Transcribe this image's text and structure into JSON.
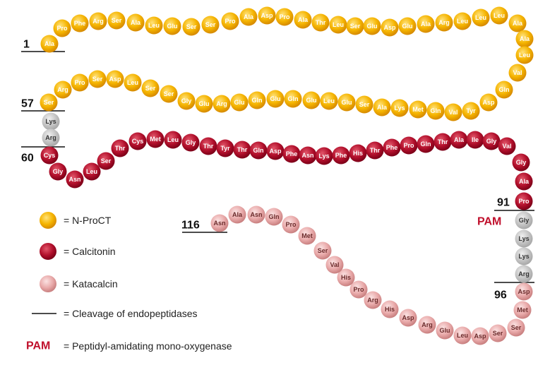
{
  "chains": [
    {
      "residues": [
        "Ala",
        "Pro",
        "Phe",
        "Arg",
        "Ser",
        "Ala",
        "Leu",
        "Glu",
        "Ser",
        "Ser",
        "Pro",
        "Ala",
        "Asp",
        "Pro",
        "Ala",
        "Thr",
        "Leu",
        "Ser",
        "Glu",
        "Asp",
        "Glu",
        "Ala",
        "Arg",
        "Leu",
        "Leu",
        "Leu",
        "Ala",
        "Ala",
        "Leu",
        "Val",
        "Gln",
        "Asp",
        "Tyr",
        "Val",
        "Gln",
        "Met",
        "Lys",
        "Ala",
        "Ser",
        "Glu",
        "Leu",
        "Glu",
        "Gln",
        "Glu",
        "Gln",
        "Glu",
        "Arg",
        "Glu",
        "Gly",
        "Ser",
        "Ser",
        "Leu",
        "Asp",
        "Ser",
        "Pro",
        "Arg",
        "Ser"
      ]
    },
    {
      "residues": [
        "Lys",
        "Arg"
      ]
    },
    {
      "residues": [
        "Cys",
        "Gly",
        "Asn",
        "Leu",
        "Ser",
        "Thr",
        "Cys",
        "Met",
        "Leu",
        "Gly",
        "Thr",
        "Tyr",
        "Thr",
        "Gln",
        "Asp",
        "Phe",
        "Asn",
        "Lys",
        "Phe",
        "His",
        "Thr",
        "Phe",
        "Pro",
        "Gln",
        "Thr",
        "Ala",
        "Ile",
        "Gly",
        "Val",
        "Gly",
        "Ala",
        "Pro"
      ]
    },
    {
      "residues": [
        "Gly",
        "Lys",
        "Lys",
        "Arg"
      ]
    },
    {
      "residues": [
        "Asp",
        "Met",
        "Ser",
        "Ser",
        "Asp",
        "Leu",
        "Glu",
        "Arg",
        "Asp",
        "His",
        "Arg",
        "Pro",
        "His",
        "Val",
        "Ser",
        "Met",
        "Pro",
        "Gln",
        "Asn",
        "Ala",
        "Asn"
      ]
    }
  ],
  "position_labels": [
    "1",
    "57",
    "60",
    "91",
    "96",
    "116"
  ],
  "pam_label": "PAM",
  "legend": [
    "= N-ProCT",
    "= Calcitonin",
    "= Katacalcin",
    "= Cleavage of endopeptidases"
  ],
  "legend_pam": {
    "abbr": "PAM",
    "label": "= Peptidyl-amidating mono-oxygenase"
  }
}
